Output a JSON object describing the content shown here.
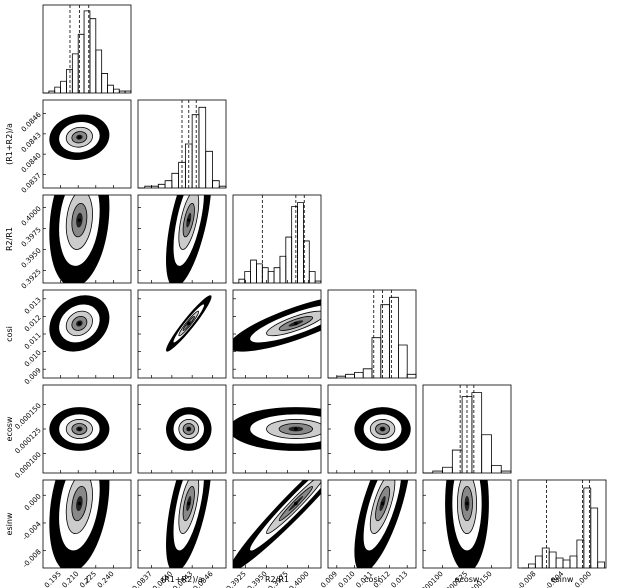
{
  "chart_data": {
    "type": "corner",
    "params": [
      {
        "name": "J",
        "lim": [
          0.18,
          0.255
        ],
        "ticks": [
          0.195,
          {
            "value": 0.21,
            "label": "0.210"
          },
          0.225,
          {
            "value": 0.24,
            "label": "0.240"
          }
        ],
        "bins": [
          0.18,
          0.185,
          0.19,
          0.195,
          0.2,
          0.205,
          0.21,
          0.215,
          0.22,
          0.225,
          0.23,
          0.235,
          0.24,
          0.245,
          0.25,
          0.255
        ],
        "counts": [
          0,
          1,
          3,
          6,
          12,
          20,
          30,
          42,
          38,
          22,
          10,
          4,
          2,
          1,
          1
        ],
        "hist_ylim": [
          0,
          45
        ],
        "quantiles": [
          0.203,
          0.211,
          0.219
        ]
      },
      {
        "name": "(R1+R2)/a",
        "lim": [
          0.0835,
          0.0848
        ],
        "ticks": [
          0.0837,
          {
            "value": 0.084,
            "label": "0.0840"
          },
          0.0843,
          0.0846
        ],
        "bins": [
          0.0835,
          0.0836,
          0.0837,
          0.0838,
          0.0839,
          0.084,
          0.0841,
          0.0842,
          0.0843,
          0.0844,
          0.0845,
          0.0846,
          0.0847,
          0.0848
        ],
        "counts": [
          0,
          1,
          1,
          2,
          4,
          8,
          14,
          24,
          40,
          44,
          20,
          4,
          1
        ],
        "hist_ylim": [
          0,
          48
        ],
        "quantiles": [
          0.08415,
          0.08425,
          0.08436
        ]
      },
      {
        "name": "R2/R1",
        "lim": [
          0.391,
          0.4015
        ],
        "ticks": [
          0.3925,
          {
            "value": 0.395,
            "label": "0.3950"
          },
          0.3975,
          {
            "value": 0.4,
            "label": "0.4000"
          }
        ],
        "bins": [
          0.391,
          0.3917,
          0.3924,
          0.3931,
          0.3938,
          0.3945,
          0.3952,
          0.3959,
          0.3966,
          0.3973,
          0.398,
          0.3987,
          0.3994,
          0.4001,
          0.4008,
          0.4015
        ],
        "counts": [
          0,
          2,
          6,
          12,
          10,
          8,
          6,
          8,
          14,
          24,
          40,
          42,
          22,
          6,
          1
        ],
        "hist_ylim": [
          0,
          46
        ],
        "quantiles": [
          0.3945,
          0.3985,
          0.3995
        ]
      },
      {
        "name": "cosi",
        "lim": [
          0.0085,
          0.0135
        ],
        "ticks": [
          0.009,
          {
            "value": 0.01,
            "label": "0.010"
          },
          0.011,
          0.012,
          0.013
        ],
        "bins": [
          0.0085,
          0.009,
          0.0095,
          0.01,
          0.0105,
          0.011,
          0.0115,
          0.012,
          0.0125,
          0.013,
          0.0135
        ],
        "counts": [
          0,
          1,
          2,
          3,
          5,
          22,
          40,
          44,
          18,
          2
        ],
        "hist_ylim": [
          0,
          48
        ],
        "quantiles": [
          0.0111,
          0.0116,
          0.0121
        ]
      },
      {
        "name": "ecosw",
        "lim": [
          8e-05,
          0.00017
        ],
        "ticks": [
          {
            "value": 0.0001,
            "label": "0.000100"
          },
          0.000125,
          {
            "value": 0.00015,
            "label": "0.000150"
          }
        ],
        "bins": [
          8e-05,
          9e-05,
          0.0001,
          0.00011,
          0.00012,
          0.00013,
          0.00014,
          0.00015,
          0.00016,
          0.00017
        ],
        "counts": [
          0,
          1,
          3,
          12,
          40,
          42,
          20,
          4,
          1
        ],
        "hist_ylim": [
          0,
          46
        ],
        "quantiles": [
          0.000118,
          0.000125,
          0.000132
        ]
      },
      {
        "name": "esinw",
        "lim": [
          -0.0105,
          0.0022
        ],
        "ticks": [
          -0.008,
          -0.004,
          {
            "value": 0,
            "label": "0.000"
          }
        ],
        "bins": [
          -0.01,
          -0.009,
          -0.008,
          -0.007,
          -0.006,
          -0.005,
          -0.004,
          -0.003,
          -0.002,
          -0.001,
          0,
          0.001,
          0.002
        ],
        "counts": [
          0,
          2,
          6,
          10,
          8,
          5,
          4,
          6,
          14,
          40,
          30,
          3
        ],
        "hist_ylim": [
          0,
          44
        ],
        "quantiles": [
          -0.0064,
          -0.0012,
          -0.0002
        ]
      }
    ],
    "correlation": [
      [],
      [
        0.1
      ],
      [
        0.2,
        0.6
      ],
      [
        0.2,
        0.95,
        0.8
      ],
      [
        0,
        0,
        0,
        0
      ],
      [
        0.3,
        0.6,
        0.97,
        0.7,
        0
      ]
    ]
  }
}
